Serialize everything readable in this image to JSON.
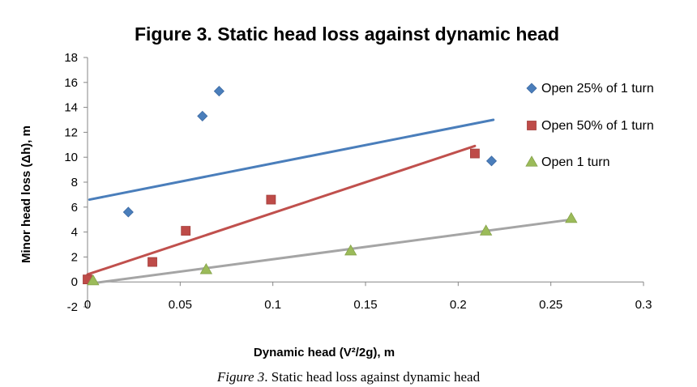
{
  "chart_data": {
    "type": "scatter",
    "title": "Figure 3. Static head loss against dynamic head",
    "xlabel": "Dynamic head (V²/2g), m",
    "ylabel": "Minor head loss (Δh), m",
    "xlim": [
      0,
      0.3
    ],
    "ylim": [
      -2,
      18
    ],
    "x_ticks": [
      0,
      0.05,
      0.1,
      0.15,
      0.2,
      0.25,
      0.3
    ],
    "x_tick_labels": [
      "0",
      "0.05",
      "0.1",
      "0.15",
      "0.2",
      "0.25",
      "0.3"
    ],
    "y_ticks": [
      -2,
      0,
      2,
      4,
      6,
      8,
      10,
      12,
      14,
      16,
      18
    ],
    "y_tick_labels": [
      "-2",
      "0",
      "2",
      "4",
      "6",
      "8",
      "10",
      "12",
      "14",
      "16",
      "18"
    ],
    "grid": false,
    "legend_position": "right",
    "series": [
      {
        "name": "Open 25% of 1 turn",
        "marker": "diamond",
        "color": "#4a7ebb",
        "line_color": "#4a7ebb",
        "points": [
          [
            0.022,
            5.6
          ],
          [
            0.062,
            13.3
          ],
          [
            0.071,
            15.3
          ],
          [
            0.218,
            9.7
          ]
        ],
        "trendline": [
          [
            0.001,
            6.6
          ],
          [
            0.219,
            13.0
          ]
        ]
      },
      {
        "name": "Open 50% of 1 turn",
        "marker": "square",
        "color": "#be4b48",
        "line_color": "#c0504d",
        "points": [
          [
            0.0,
            0.2
          ],
          [
            0.035,
            1.6
          ],
          [
            0.053,
            4.1
          ],
          [
            0.099,
            6.6
          ],
          [
            0.209,
            10.3
          ]
        ],
        "trendline": [
          [
            0.0,
            0.6
          ],
          [
            0.209,
            10.9
          ]
        ]
      },
      {
        "name": "Open 1 turn",
        "marker": "triangle",
        "color": "#9bbb59",
        "line_color": "#a5a5a5",
        "points": [
          [
            0.003,
            0.1
          ],
          [
            0.064,
            1.0
          ],
          [
            0.142,
            2.5
          ],
          [
            0.215,
            4.1
          ],
          [
            0.261,
            5.1
          ]
        ],
        "trendline": [
          [
            0.003,
            -0.1
          ],
          [
            0.261,
            5.0
          ]
        ]
      }
    ]
  },
  "caption": {
    "label": "Figure 3",
    "text": ". Static head loss against dynamic head"
  }
}
